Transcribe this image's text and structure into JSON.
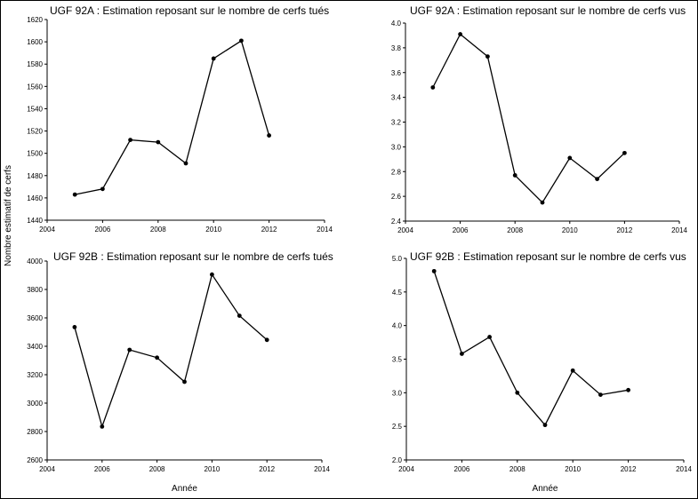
{
  "ylabel": "Nombre estimatif de cerfs",
  "xlabel": "Année",
  "chart_data": [
    {
      "type": "line",
      "title": "UGF 92A : Estimation reposant sur le nombre de cerfs tués",
      "xlabel": "",
      "ylabel": "Nombre estimatif de cerfs",
      "xlim": [
        2004,
        2014
      ],
      "xticks": [
        2004,
        2006,
        2008,
        2010,
        2012,
        2014
      ],
      "ylim": [
        1440,
        1620
      ],
      "yticks": [
        1440,
        1460,
        1480,
        1500,
        1520,
        1540,
        1560,
        1580,
        1600,
        1620
      ],
      "x": [
        2005,
        2006,
        2007,
        2008,
        2009,
        2010,
        2011,
        2012
      ],
      "y": [
        1463,
        1468,
        1512,
        1510,
        1491,
        1585,
        1601,
        1516
      ]
    },
    {
      "type": "line",
      "title": "UGF 92A : Estimation reposant sur le nombre de cerfs vus",
      "xlabel": "",
      "ylabel": "",
      "xlim": [
        2004,
        2014
      ],
      "xticks": [
        2004,
        2006,
        2008,
        2010,
        2012,
        2014
      ],
      "ylim": [
        2.4,
        4.0
      ],
      "yticks": [
        "2.4",
        "2.6",
        "2.8",
        "3.0",
        "3.2",
        "3.4",
        "3.6",
        "3.8",
        "4.0"
      ],
      "x": [
        2005,
        2006,
        2007,
        2008,
        2009,
        2010,
        2011,
        2012
      ],
      "y": [
        3.48,
        3.91,
        3.73,
        2.77,
        2.55,
        2.91,
        2.74,
        2.95
      ]
    },
    {
      "type": "line",
      "title": "UGF 92B : Estimation reposant sur le nombre de cerfs tués",
      "xlabel": "Année",
      "ylabel": "Nombre estimatif de cerfs",
      "xlim": [
        2004,
        2014
      ],
      "xticks": [
        2004,
        2006,
        2008,
        2010,
        2012,
        2014
      ],
      "ylim": [
        2600,
        4000
      ],
      "yticks": [
        2600,
        2800,
        3000,
        3200,
        3400,
        3600,
        3800,
        4000
      ],
      "x": [
        2005,
        2006,
        2007,
        2008,
        2009,
        2010,
        2011,
        2012
      ],
      "y": [
        3535,
        2835,
        3375,
        3320,
        3150,
        3905,
        3615,
        3445
      ]
    },
    {
      "type": "line",
      "title": "UGF 92B : Estimation reposant sur le nombre de cerfs vus",
      "xlabel": "Année",
      "ylabel": "",
      "xlim": [
        2004,
        2014
      ],
      "xticks": [
        2004,
        2006,
        2008,
        2010,
        2012,
        2014
      ],
      "ylim": [
        2.0,
        5.0
      ],
      "yticks": [
        "2.0",
        "2.5",
        "3.0",
        "3.5",
        "4.0",
        "4.5",
        "5.0"
      ],
      "x": [
        2005,
        2006,
        2007,
        2008,
        2009,
        2010,
        2011,
        2012
      ],
      "y": [
        4.81,
        3.58,
        3.83,
        3.0,
        2.52,
        3.33,
        2.97,
        3.04
      ]
    }
  ]
}
